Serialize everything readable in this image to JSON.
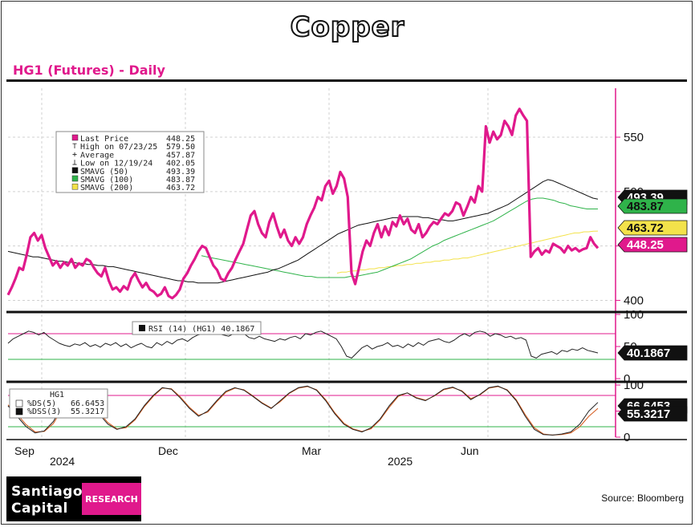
{
  "page": {
    "title": "Copper",
    "subtitle": "HG1 (Futures) - Daily",
    "source": "Source: Bloomberg",
    "logo": {
      "line1": "Santiago",
      "line2": "Capital",
      "badge": "RESEARCH"
    }
  },
  "colors": {
    "price": "#e0198c",
    "sma50": "#111111",
    "sma100": "#2fb34a",
    "sma200": "#f3e24a",
    "stoch_k": "#222222",
    "stoch_d": "#d4581a",
    "upper_band": "#e0198c",
    "lower_band": "#2fb34a"
  },
  "chart_data": [
    {
      "type": "line",
      "panel": "price",
      "title": "HG1 (Futures) - Daily",
      "ylim": [
        390,
        595
      ],
      "y_ticks": [
        400,
        450,
        500,
        550
      ],
      "x_tick_labels": [
        "Sep",
        "Dec",
        "Mar",
        "Jun"
      ],
      "x_year_labels": [
        "2024",
        "2025"
      ],
      "grid": true,
      "legend": {
        "placement": "top-left",
        "items": [
          {
            "label": "Last Price",
            "value": "448.25",
            "marker": "square-pink"
          },
          {
            "label": "High on 07/23/25",
            "value": "579.50",
            "marker": "high"
          },
          {
            "label": "Average",
            "value": "457.87",
            "marker": "avg"
          },
          {
            "label": "Low on 12/19/24",
            "value": "402.05",
            "marker": "low"
          },
          {
            "label": "SMAVG (50)",
            "value": "493.39",
            "marker": "square-black"
          },
          {
            "label": "SMAVG (100)",
            "value": "483.87",
            "marker": "square-green"
          },
          {
            "label": "SMAVG (200)",
            "value": "463.72",
            "marker": "square-yellow"
          }
        ]
      },
      "value_tags": [
        {
          "label": "493.39",
          "value": 493.39,
          "bg": "#111111",
          "fg": "#ffffff"
        },
        {
          "label": "483.87",
          "value": 483.87,
          "bg": "#2fb34a",
          "fg": "#111111"
        },
        {
          "label": "463.72",
          "value": 463.72,
          "bg": "#f3e24a",
          "fg": "#111111"
        },
        {
          "label": "448.25",
          "value": 448.25,
          "bg": "#e0198c",
          "fg": "#ffffff"
        }
      ],
      "series": [
        {
          "name": "Last Price",
          "values": [
            405,
            412,
            420,
            430,
            428,
            442,
            458,
            462,
            455,
            460,
            448,
            440,
            432,
            436,
            430,
            435,
            432,
            438,
            430,
            434,
            432,
            438,
            436,
            430,
            425,
            422,
            430,
            418,
            410,
            412,
            408,
            413,
            410,
            420,
            425,
            418,
            412,
            416,
            410,
            408,
            404,
            406,
            412,
            404,
            402,
            405,
            410,
            420,
            425,
            432,
            438,
            445,
            450,
            448,
            440,
            432,
            428,
            420,
            418,
            425,
            430,
            438,
            445,
            452,
            465,
            478,
            482,
            470,
            462,
            458,
            472,
            480,
            468,
            458,
            465,
            455,
            450,
            458,
            452,
            458,
            470,
            478,
            485,
            495,
            492,
            505,
            510,
            498,
            505,
            518,
            512,
            495,
            425,
            415,
            430,
            445,
            455,
            450,
            462,
            470,
            458,
            468,
            460,
            472,
            468,
            478,
            470,
            475,
            465,
            462,
            470,
            458,
            462,
            468,
            472,
            470,
            475,
            480,
            478,
            482,
            490,
            488,
            478,
            486,
            495,
            490,
            505,
            500,
            560,
            545,
            555,
            548,
            552,
            565,
            560,
            552,
            570,
            576,
            570,
            565,
            440,
            445,
            448,
            442,
            446,
            444,
            452,
            450,
            448,
            444,
            450,
            446,
            448,
            445,
            447,
            448,
            458,
            452,
            448
          ]
        },
        {
          "name": "SMAVG (50)",
          "values": [
            445,
            444,
            443,
            442,
            441,
            440,
            440,
            439,
            438,
            437,
            436,
            436,
            435,
            435,
            434,
            434,
            433,
            433,
            432,
            432,
            431,
            431,
            430,
            429,
            428,
            427,
            426,
            425,
            424,
            423,
            422,
            421,
            420,
            419,
            418,
            418,
            417,
            417,
            416,
            416,
            416,
            416,
            416,
            417,
            418,
            419,
            420,
            421,
            422,
            423,
            424,
            425,
            426,
            428,
            429,
            431,
            433,
            435,
            437,
            440,
            443,
            446,
            449,
            452,
            455,
            458,
            461,
            463,
            465,
            467,
            469,
            470,
            471,
            472,
            473,
            474,
            475,
            476,
            476,
            477,
            477,
            477,
            477,
            476,
            476,
            475,
            474,
            474,
            473,
            473,
            474,
            475,
            476,
            477,
            478,
            479,
            480,
            482,
            484,
            486,
            488,
            491,
            494,
            497,
            500,
            503,
            506,
            509,
            511,
            510,
            508,
            506,
            504,
            502,
            500,
            498,
            496,
            494,
            493
          ]
        },
        {
          "name": "SMAVG (100)",
          "values": [
            441,
            440,
            439,
            438,
            437,
            436,
            435,
            434,
            433,
            432,
            431,
            430,
            429,
            428,
            427,
            426,
            425,
            424,
            423,
            422,
            422,
            421,
            421,
            421,
            421,
            421,
            421,
            422,
            422,
            423,
            424,
            425,
            426,
            428,
            430,
            432,
            434,
            436,
            438,
            441,
            444,
            447,
            450,
            452,
            455,
            457,
            459,
            461,
            463,
            465,
            467,
            469,
            471,
            473,
            476,
            479,
            482,
            485,
            488,
            491,
            493,
            494,
            494,
            493,
            492,
            490,
            489,
            487,
            486,
            485,
            484,
            484,
            484
          ]
        },
        {
          "name": "SMAVG (200)",
          "values": [
            425,
            426,
            426,
            427,
            427,
            428,
            428,
            429,
            429,
            430,
            430,
            431,
            431,
            432,
            432,
            433,
            433,
            434,
            434,
            435,
            435,
            436,
            436,
            437,
            437,
            438,
            438,
            439,
            439,
            440,
            441,
            442,
            443,
            444,
            445,
            446,
            447,
            448,
            449,
            450,
            451,
            452,
            453,
            454,
            455,
            456,
            457,
            458,
            459,
            460,
            461,
            462,
            462,
            463,
            463,
            463.5,
            463.7
          ]
        }
      ]
    },
    {
      "type": "line",
      "panel": "rsi",
      "ylim": [
        0,
        100
      ],
      "y_ticks": [
        0,
        50,
        100
      ],
      "bands": [
        70,
        30
      ],
      "legend_label": "RSI (14) (HG1) 40.1867",
      "value_tags": [
        {
          "label": "40.1867",
          "value": 40.1867,
          "bg": "#111111",
          "fg": "#ffffff"
        }
      ],
      "series": [
        {
          "name": "RSI (14) (HG1)",
          "values": [
            55,
            62,
            66,
            70,
            74,
            72,
            68,
            72,
            65,
            60,
            55,
            52,
            50,
            54,
            52,
            56,
            50,
            53,
            49,
            55,
            52,
            56,
            50,
            54,
            48,
            52,
            55,
            50,
            48,
            56,
            52,
            58,
            54,
            60,
            62,
            58,
            64,
            68,
            70,
            72,
            74,
            70,
            68,
            66,
            70,
            74,
            70,
            64,
            62,
            66,
            62,
            60,
            58,
            62,
            60,
            64,
            66,
            62,
            70,
            68,
            72,
            74,
            70,
            66,
            62,
            50,
            35,
            32,
            40,
            48,
            52,
            46,
            50,
            52,
            56,
            50,
            52,
            48,
            54,
            50,
            56,
            52,
            58,
            60,
            62,
            58,
            56,
            60,
            66,
            70,
            66,
            72,
            74,
            72,
            66,
            70,
            68,
            64,
            66,
            62,
            64,
            60,
            35,
            32,
            38,
            40,
            42,
            38,
            44,
            42,
            46,
            44,
            48,
            44,
            42,
            40
          ]
        }
      ]
    },
    {
      "type": "line",
      "panel": "stochastic",
      "ylim": [
        0,
        100
      ],
      "y_ticks": [
        0,
        50,
        100
      ],
      "bands": [
        80,
        20
      ],
      "legend_title": "HG1",
      "legend_items": [
        {
          "label": "%DS(5)",
          "value": "66.6453"
        },
        {
          "label": "%DSS(3)",
          "value": "55.3217"
        }
      ],
      "value_tags": [
        {
          "label": "66.6453",
          "value": 66.6453,
          "bg": "#111111",
          "fg": "#ffffff"
        },
        {
          "label": "55.3217",
          "value": 55.3217,
          "bg": "#111111",
          "fg": "#ffffff"
        }
      ],
      "series": [
        {
          "name": "%DS(5)",
          "values": [
            60,
            40,
            20,
            8,
            12,
            30,
            60,
            85,
            90,
            70,
            45,
            25,
            15,
            20,
            35,
            60,
            80,
            95,
            92,
            75,
            55,
            40,
            50,
            70,
            88,
            95,
            90,
            78,
            65,
            55,
            70,
            85,
            95,
            98,
            90,
            70,
            45,
            25,
            15,
            10,
            18,
            35,
            60,
            80,
            85,
            75,
            70,
            80,
            92,
            96,
            88,
            72,
            82,
            95,
            98,
            90,
            70,
            40,
            15,
            5,
            4,
            6,
            10,
            25,
            50,
            66.6
          ]
        },
        {
          "name": "%DSS(3)",
          "values": [
            62,
            44,
            24,
            10,
            11,
            26,
            55,
            82,
            89,
            73,
            48,
            28,
            16,
            18,
            33,
            58,
            78,
            94,
            93,
            77,
            57,
            42,
            48,
            68,
            86,
            94,
            91,
            79,
            66,
            56,
            68,
            84,
            94,
            97,
            91,
            72,
            47,
            27,
            16,
            11,
            16,
            33,
            57,
            78,
            85,
            76,
            71,
            79,
            91,
            95,
            89,
            74,
            81,
            94,
            97,
            91,
            72,
            43,
            18,
            6,
            4,
            5,
            8,
            20,
            40,
            55.3
          ]
        }
      ]
    }
  ]
}
